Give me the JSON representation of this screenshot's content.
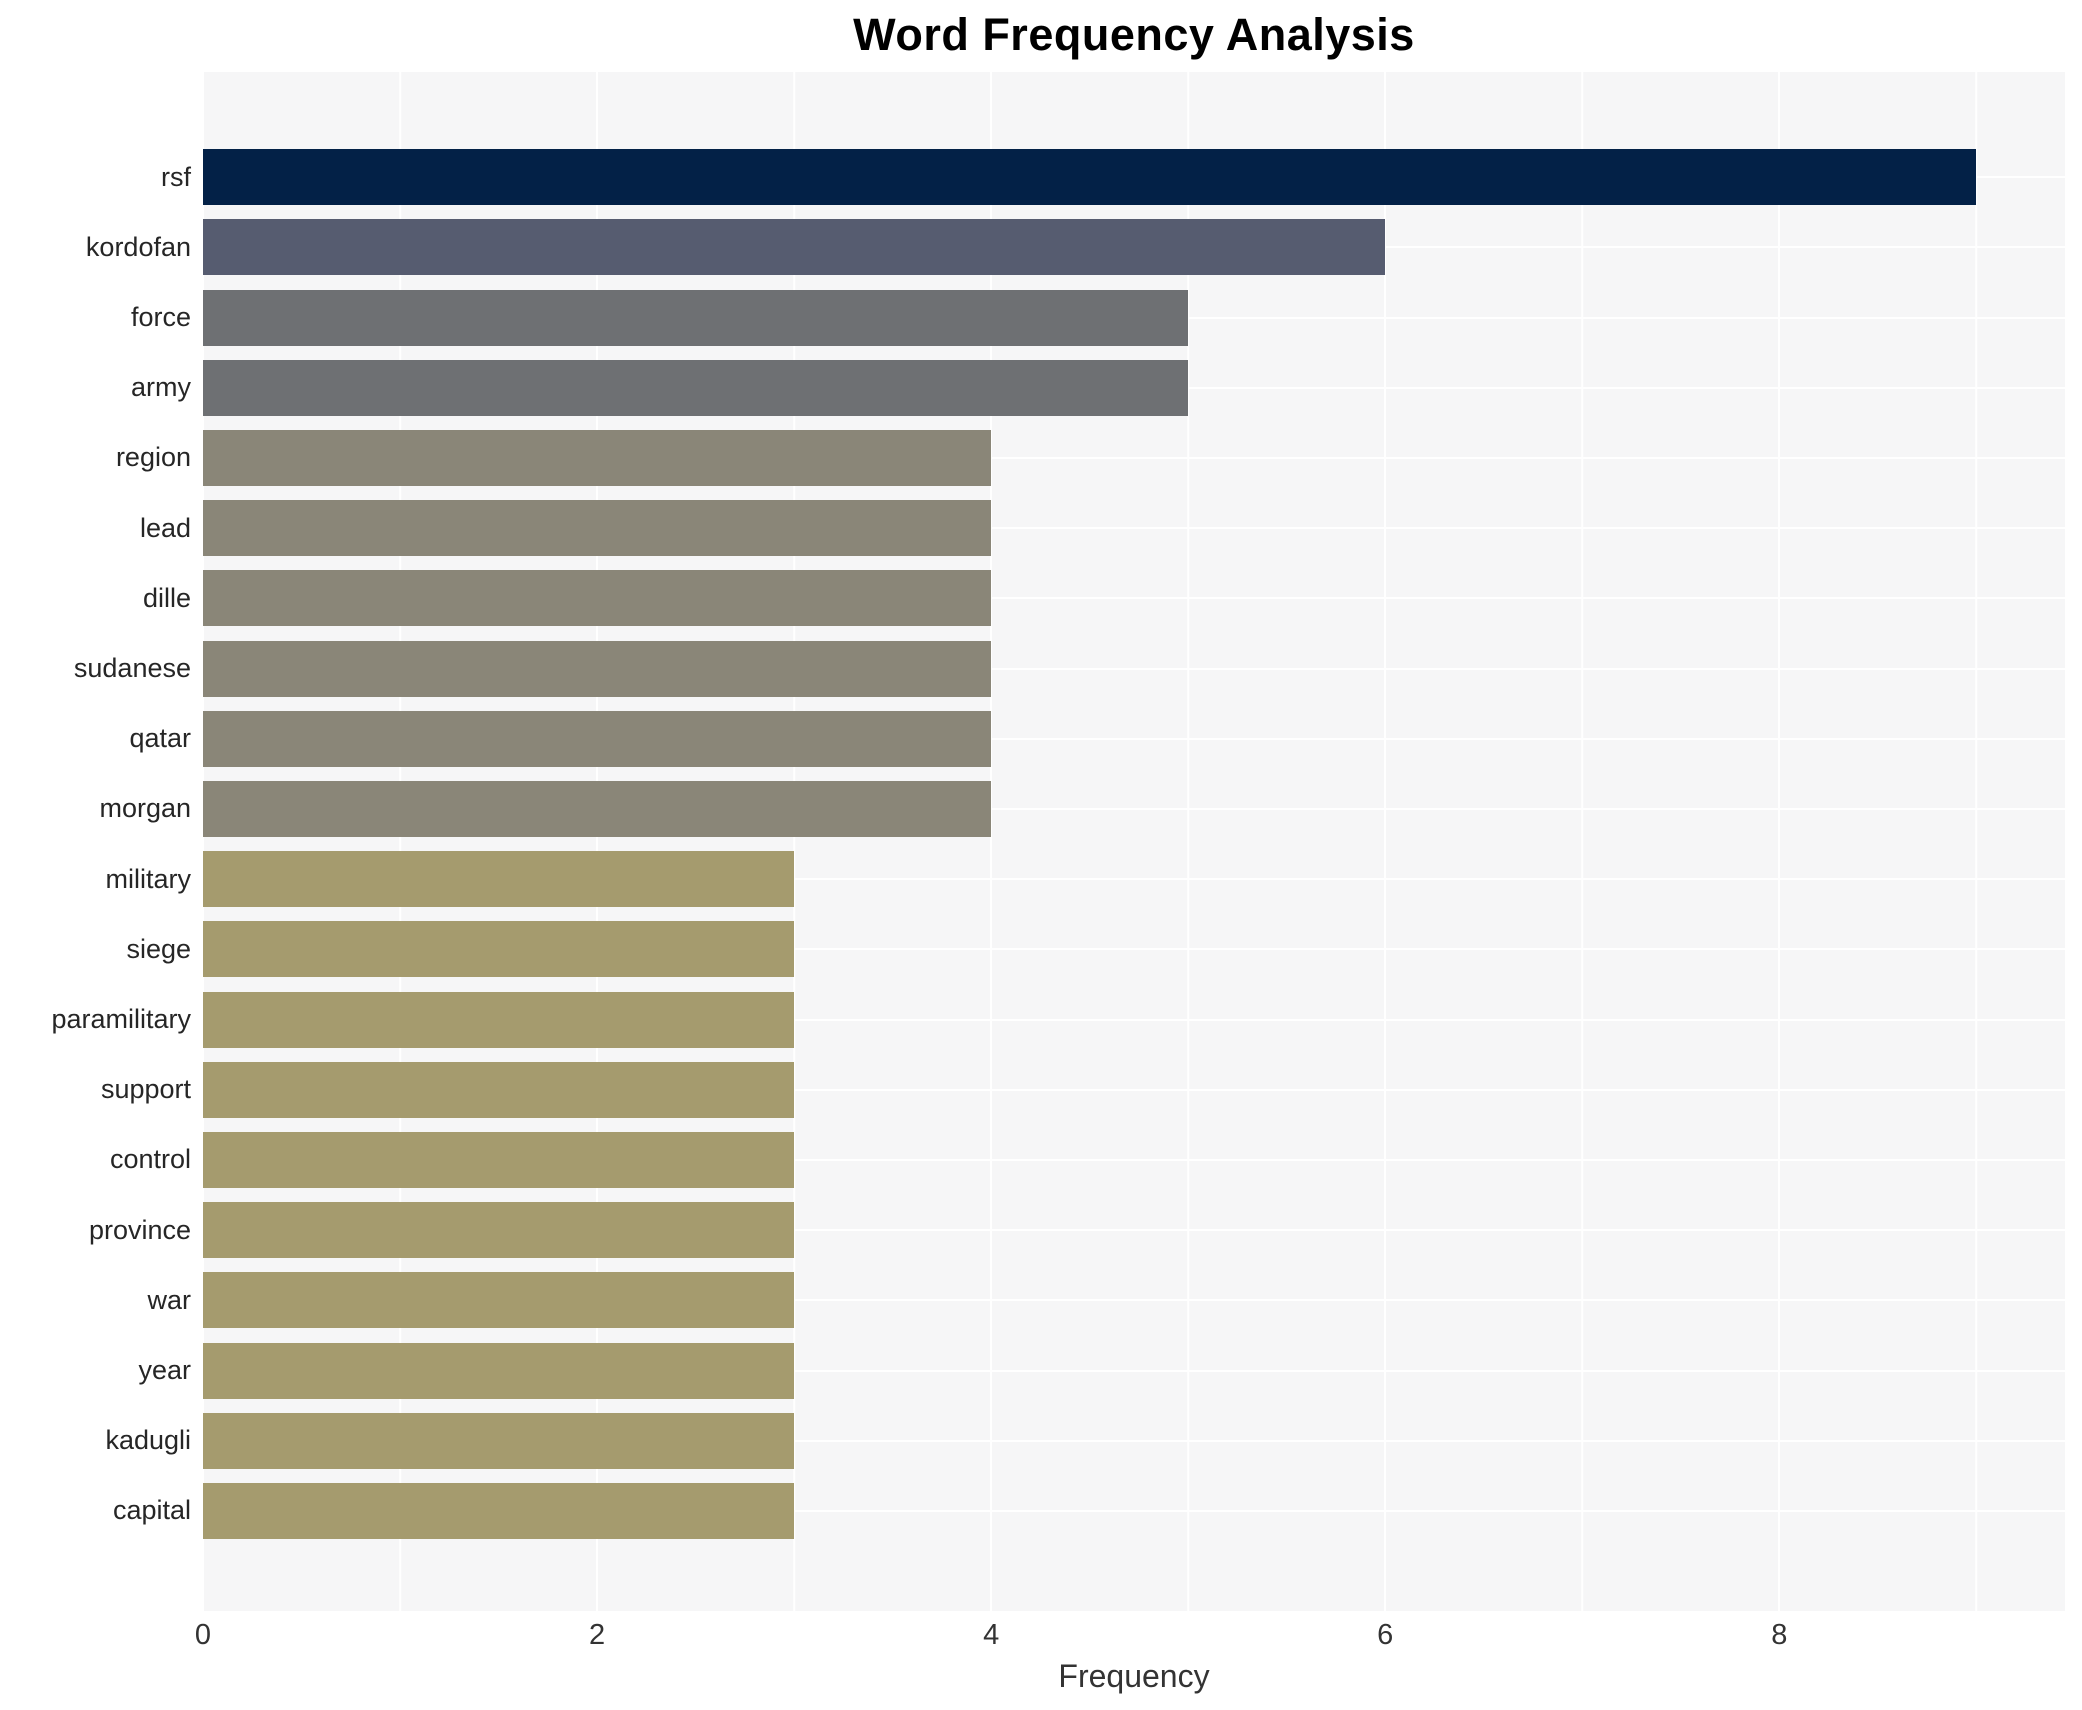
{
  "chart_data": {
    "type": "bar",
    "orientation": "horizontal",
    "title": "Word Frequency Analysis",
    "xlabel": "Frequency",
    "ylabel": "",
    "categories": [
      "rsf",
      "kordofan",
      "force",
      "army",
      "region",
      "lead",
      "dille",
      "sudanese",
      "qatar",
      "morgan",
      "military",
      "siege",
      "paramilitary",
      "support",
      "control",
      "province",
      "war",
      "year",
      "kadugli",
      "capital"
    ],
    "values": [
      9,
      6,
      5,
      5,
      4,
      4,
      4,
      4,
      4,
      4,
      3,
      3,
      3,
      3,
      3,
      3,
      3,
      3,
      3,
      3
    ],
    "xlim": [
      0,
      9.45
    ],
    "major_ticks": [
      0,
      2,
      4,
      6,
      8
    ],
    "minor_ticks": [
      1,
      3,
      5,
      7,
      9
    ],
    "grid": "on",
    "legend": "none",
    "value_colors": {
      "9": "#032147",
      "6": "#565c70",
      "5": "#6e7073",
      "4": "#8a8678",
      "3": "#a59b6e"
    },
    "panel_background": "#f6f6f7",
    "gridline_color": "#ffffff"
  }
}
